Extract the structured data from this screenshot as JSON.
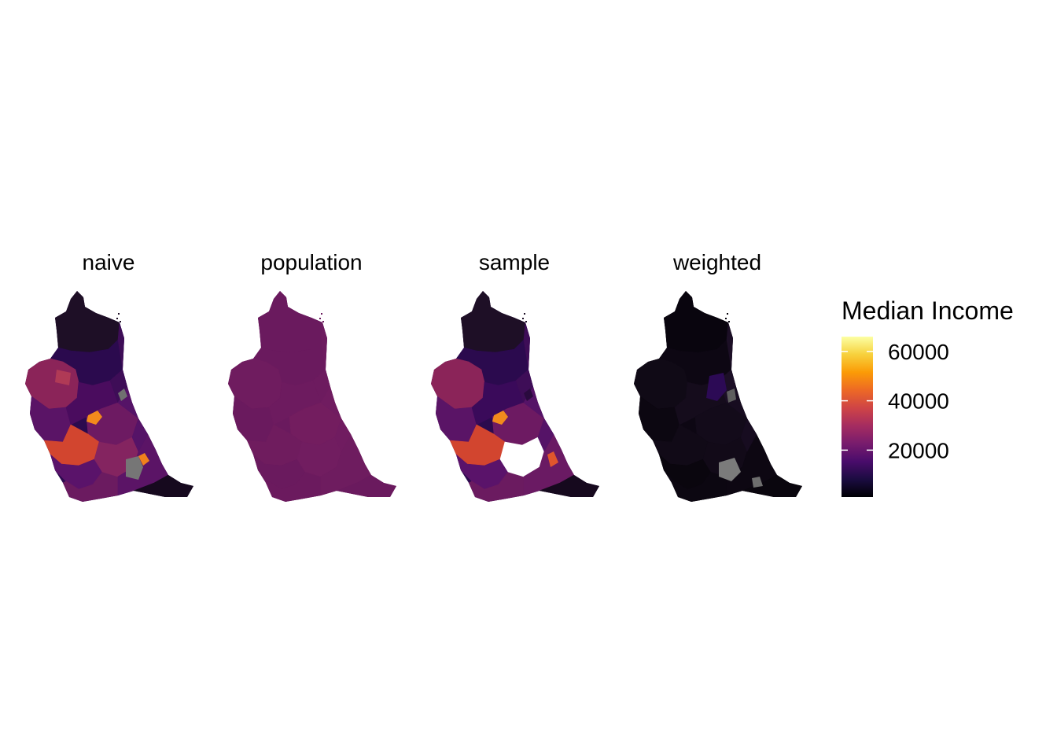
{
  "chart_data": {
    "type": "choropleth-map",
    "facets": [
      {
        "label": "naive"
      },
      {
        "label": "population"
      },
      {
        "label": "sample"
      },
      {
        "label": "weighted"
      }
    ],
    "legend": {
      "title": "Median Income",
      "breaks": [
        20000,
        40000,
        60000
      ],
      "break_labels": [
        "20000",
        "40000",
        "60000"
      ],
      "limits": [
        1000,
        66000
      ],
      "palette": "inferno",
      "palette_stops": [
        "#000004",
        "#1b0c41",
        "#4a0c6b",
        "#781c6d",
        "#a52c60",
        "#cf4446",
        "#ed6925",
        "#fb9b06",
        "#f7d13d",
        "#fcffa4"
      ],
      "na_color": "#7f7f7f"
    }
  }
}
